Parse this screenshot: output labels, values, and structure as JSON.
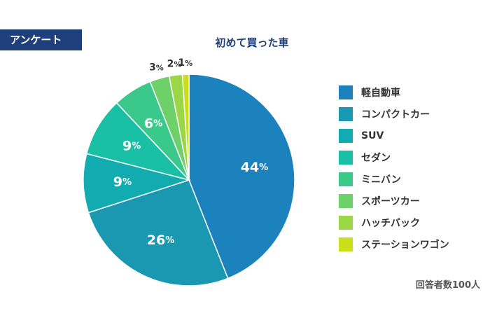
{
  "tag": {
    "label": "アンケート"
  },
  "chart_data": {
    "type": "pie",
    "title": "初めて買った車",
    "legend_position": "right",
    "unit": "%",
    "slices": [
      {
        "label": "軽自動車",
        "value": 44,
        "color": "#1c82be"
      },
      {
        "label": "コンパクトカー",
        "value": 26,
        "color": "#1a98b1"
      },
      {
        "label": "SUV",
        "value": 9,
        "color": "#12acb0"
      },
      {
        "label": "セダン",
        "value": 9,
        "color": "#19c0a5"
      },
      {
        "label": "ミニバン",
        "value": 6,
        "color": "#3bc88b"
      },
      {
        "label": "スポーツカー",
        "value": 3,
        "color": "#6ed068"
      },
      {
        "label": "ハッチバック",
        "value": 2,
        "color": "#9bd647"
      },
      {
        "label": "ステーションワゴン",
        "value": 1,
        "color": "#c9df1a"
      }
    ]
  },
  "note": "回答者数100人"
}
